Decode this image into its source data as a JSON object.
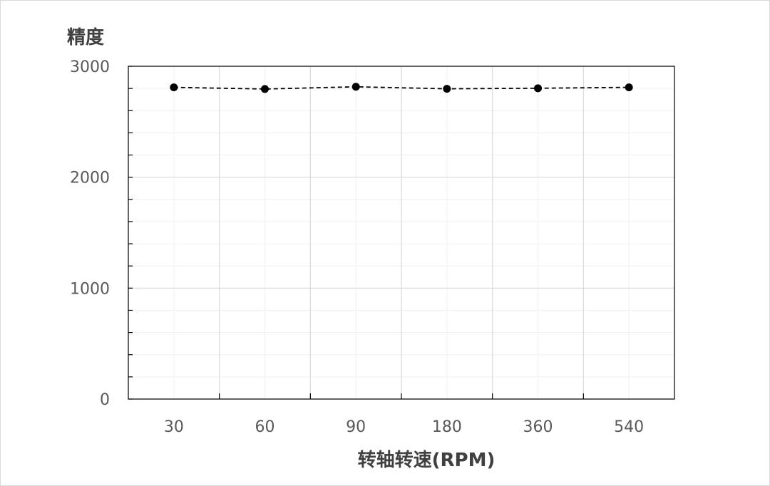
{
  "chart_data": {
    "type": "line",
    "title": "",
    "xlabel": "转轴转速(RPM)",
    "ylabel": "精度",
    "categories": [
      "30",
      "60",
      "90",
      "180",
      "360",
      "540"
    ],
    "series": [
      {
        "values": [
          2810,
          2795,
          2815,
          2797,
          2802,
          2810
        ]
      }
    ],
    "ylim": [
      0,
      3000
    ],
    "yticks": [
      "0",
      "1000",
      "2000",
      "3000"
    ],
    "grid": true,
    "line_style": "dashed",
    "marker": "circle",
    "colors": {
      "line": "#000000",
      "marker": "#000000",
      "grid": "#d9d9d9",
      "axis": "#000000"
    }
  }
}
